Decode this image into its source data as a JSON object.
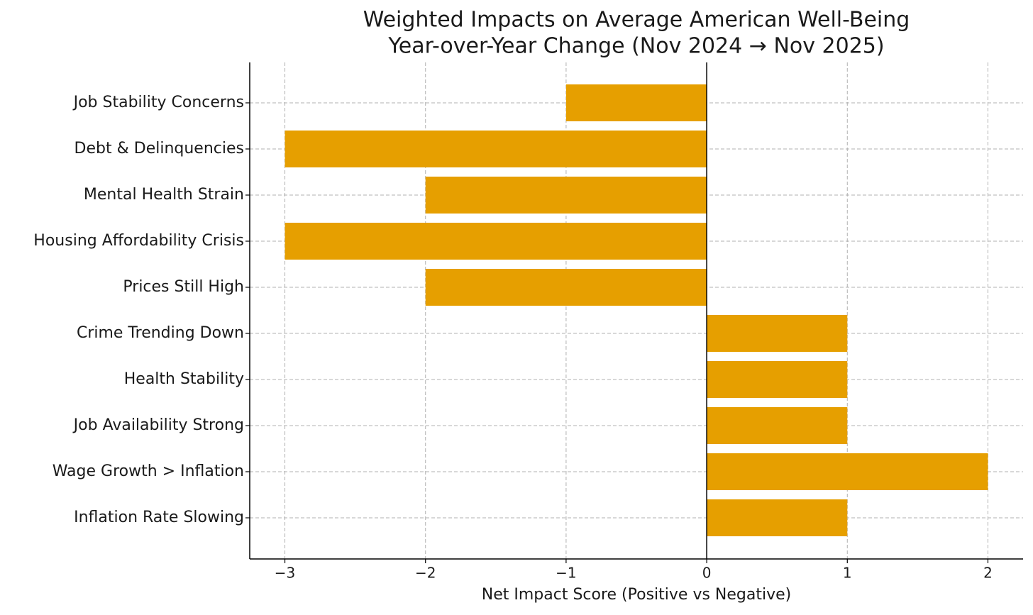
{
  "chart_data": {
    "type": "barh",
    "title": "Weighted Impacts on Average American Well-Being",
    "subtitle": "Year-over-Year Change (Nov 2024 → Nov 2025)",
    "xlabel": "Net Impact Score (Positive vs Negative)",
    "categories": [
      "Job Stability Concerns",
      "Debt & Delinquencies",
      "Mental Health Strain",
      "Housing Affordability Crisis",
      "Prices Still High",
      "Crime Trending Down",
      "Health Stability",
      "Job Availability Strong",
      "Wage Growth > Inflation",
      "Inflation Rate Slowing"
    ],
    "values": [
      -1,
      -3,
      -2,
      -3,
      -2,
      1,
      1,
      1,
      2,
      1
    ],
    "color": "#e69f00",
    "xlim": [
      -3.25,
      2.25
    ],
    "xticks": [
      {
        "value": -3,
        "label": "−3"
      },
      {
        "value": -2,
        "label": "−2"
      },
      {
        "value": -1,
        "label": "−1"
      },
      0,
      1,
      2
    ],
    "grid": true
  }
}
